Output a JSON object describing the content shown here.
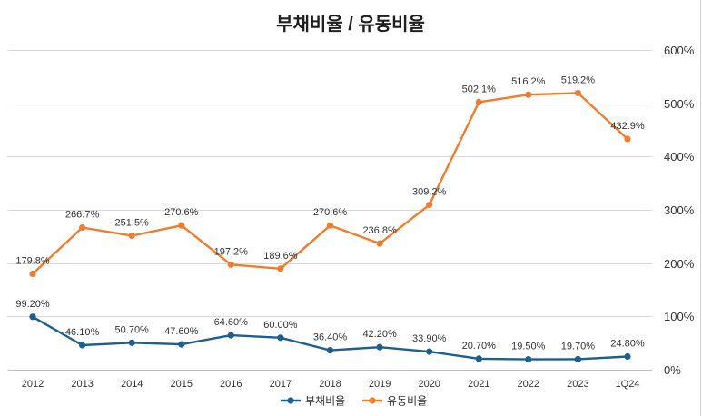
{
  "chart_data": {
    "type": "line",
    "title": "부채비율 / 유동비율",
    "xlabel": "",
    "ylabel": "",
    "categories": [
      "2012",
      "2013",
      "2014",
      "2015",
      "2016",
      "2017",
      "2018",
      "2019",
      "2020",
      "2021",
      "2022",
      "2023",
      "1Q24"
    ],
    "series": [
      {
        "name": "부채비율",
        "color": "#1f5f8b",
        "values": [
          99.2,
          46.1,
          50.7,
          47.6,
          64.6,
          60.0,
          36.4,
          42.2,
          33.9,
          20.7,
          19.5,
          19.7,
          24.8
        ],
        "labels": [
          "99.20%",
          "46.10%",
          "50.70%",
          "47.60%",
          "64.60%",
          "60.00%",
          "36.40%",
          "42.20%",
          "33.90%",
          "20.70%",
          "19.50%",
          "19.70%",
          "24.80%"
        ]
      },
      {
        "name": "유동비율",
        "color": "#ed7d31",
        "values": [
          179.8,
          266.7,
          251.5,
          270.6,
          197.2,
          189.6,
          270.6,
          236.8,
          309.2,
          502.1,
          516.2,
          519.2,
          432.9
        ],
        "labels": [
          "179.8%",
          "266.7%",
          "251.5%",
          "270.6%",
          "197.2%",
          "189.6%",
          "270.6%",
          "236.8%",
          "309.2%",
          "502.1%",
          "516.2%",
          "519.2%",
          "432.9%"
        ]
      }
    ],
    "ylim": [
      0,
      600
    ],
    "yticks": [
      0,
      100,
      200,
      300,
      400,
      500,
      600
    ],
    "ytick_labels": [
      "0%",
      "100%",
      "200%",
      "300%",
      "400%",
      "500%",
      "600%"
    ],
    "y_axis_side": "right",
    "grid": true,
    "legend": "bottom-center"
  }
}
